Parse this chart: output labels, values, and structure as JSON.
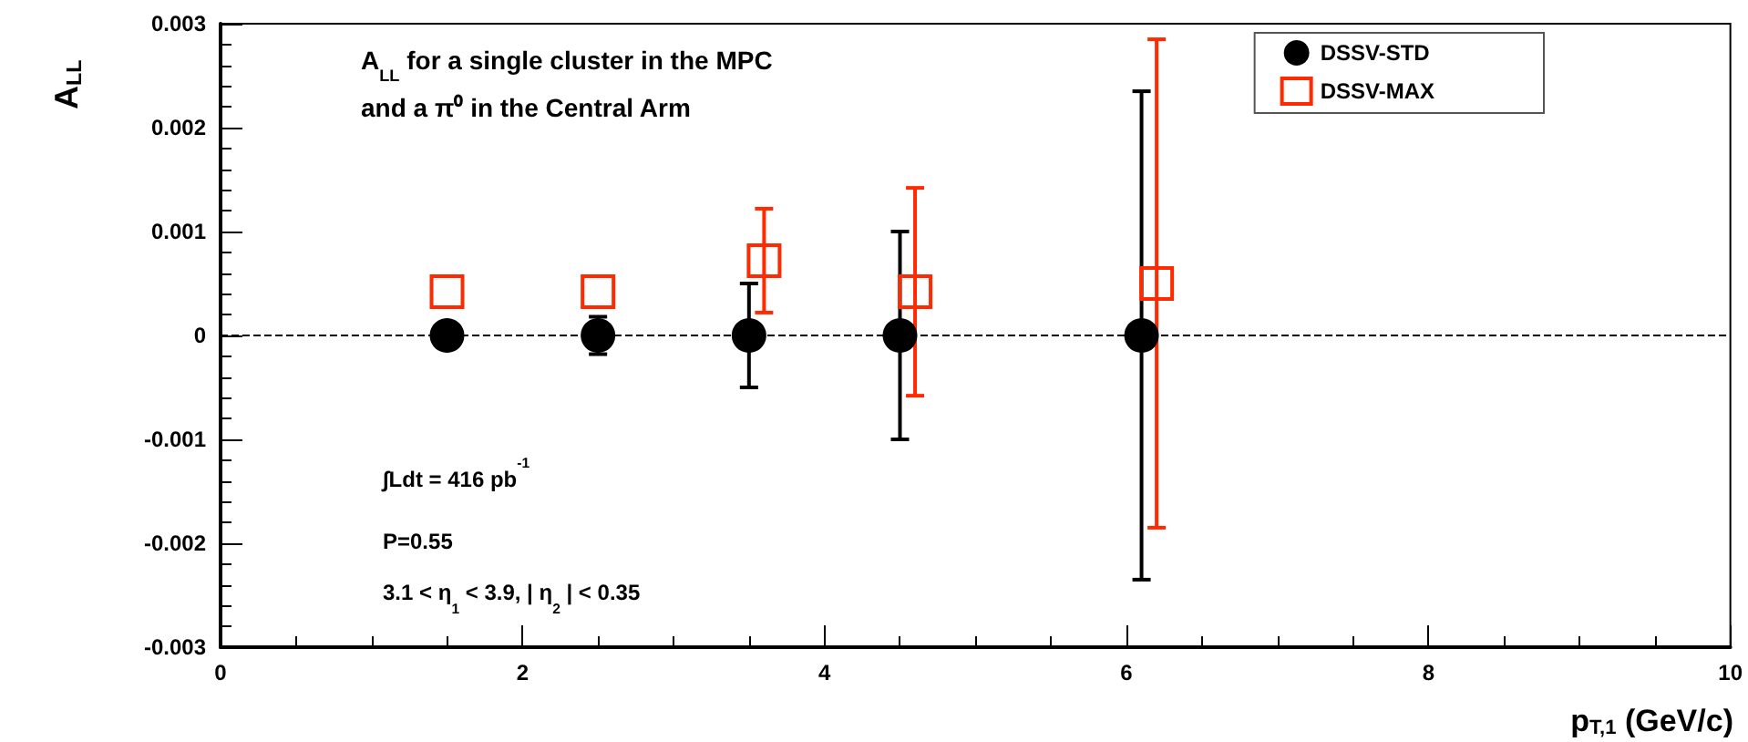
{
  "chart_data": {
    "type": "scatter",
    "xlabel": "p$_{T,1}$ (GeV/c)",
    "ylabel": "A$_{LL}$",
    "annotations": [
      "A$_{LL}$ for a single cluster in the MPC\nand a π⁰ in the Central Arm",
      "∫Ldt = 416 pb$^{-1}$",
      "P=0.55",
      "3.1 < η$_{1}$ < 3.9, | η$_{2}$ | < 0.35"
    ],
    "series": [
      {
        "name": "DSSV-STD",
        "color": "#000000",
        "marker": "circle",
        "x": [
          1.5,
          2.5,
          3.5,
          4.5,
          6.1
        ],
        "values": [
          0,
          0,
          0,
          0,
          0
        ],
        "errors": [
          null,
          0.00018,
          0.0005,
          0.001,
          0.00235
        ]
      },
      {
        "name": "DSSV-MAX",
        "color": "#ff2a00",
        "marker": "square",
        "x": [
          1.5,
          2.5,
          3.6,
          4.6,
          6.2
        ],
        "values": [
          0.00042,
          0.00042,
          0.00072,
          0.00042,
          0.0005
        ],
        "errors": [
          null,
          null,
          0.0005,
          0.001,
          0.00235
        ]
      }
    ],
    "xlim": [
      0,
      10
    ],
    "xticks": [
      0,
      2,
      4,
      6,
      8,
      10
    ],
    "ylim": [
      -0.003,
      0.003
    ],
    "yticks": [
      -0.003,
      -0.002,
      -0.001,
      0,
      0.001,
      0.002,
      0.003
    ],
    "ref_lines": [
      {
        "axis": "y",
        "value": 0,
        "line_style": "dashed",
        "color": "#000000"
      }
    ],
    "grid": false,
    "legend": "top right"
  }
}
